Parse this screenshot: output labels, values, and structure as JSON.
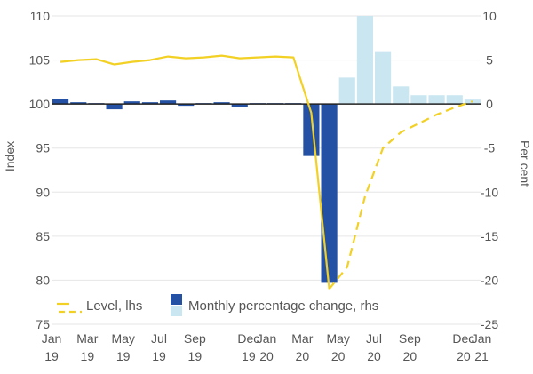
{
  "chart_data": {
    "type": "bar",
    "ylabel_left": "Index",
    "ylabel_right": "Per cent",
    "ylim_left": [
      75,
      110
    ],
    "ylim_right": [
      -25,
      10
    ],
    "left_ticks": [
      110,
      105,
      100,
      95,
      90,
      85,
      80,
      75
    ],
    "right_ticks": [
      10,
      5,
      0,
      -5,
      -10,
      -15,
      -20,
      -25
    ],
    "x_ticks": [
      {
        "month": "Jan",
        "year": "19"
      },
      {
        "month": "Mar",
        "year": "19"
      },
      {
        "month": "May",
        "year": "19"
      },
      {
        "month": "Jul",
        "year": "19"
      },
      {
        "month": "Sep",
        "year": "19"
      },
      {
        "month": "Dec",
        "year": "19"
      },
      {
        "month": "Jan",
        "year": "20"
      },
      {
        "month": "Mar",
        "year": "20"
      },
      {
        "month": "May",
        "year": "20"
      },
      {
        "month": "Jul",
        "year": "20"
      },
      {
        "month": "Sep",
        "year": "20"
      },
      {
        "month": "Dec",
        "year": "20"
      },
      {
        "month": "Jan",
        "year": "21"
      }
    ],
    "months": [
      "Jan 2019",
      "Feb 2019",
      "Mar 2019",
      "Apr 2019",
      "May 2019",
      "Jun 2019",
      "Jul 2019",
      "Aug 2019",
      "Sep 2019",
      "Oct 2019",
      "Nov 2019",
      "Dec 2019",
      "Jan 2020",
      "Feb 2020",
      "Mar 2020",
      "Apr 2020",
      "May 2020",
      "Jun 2020",
      "Jul 2020",
      "Aug 2020",
      "Sep 2020",
      "Oct 2020",
      "Nov 2020",
      "Dec 2020"
    ],
    "monthly_change": [
      0.6,
      0.2,
      0.1,
      -0.6,
      0.3,
      0.2,
      0.4,
      -0.2,
      0.1,
      0.2,
      -0.3,
      0.1,
      0.1,
      0.1,
      -5.9,
      -20.3,
      3.0,
      10.0,
      6.0,
      2.0,
      1.0,
      1.0,
      1.0,
      0.5
    ],
    "level_actual": [
      {
        "x": 0,
        "y": 104.8
      },
      {
        "x": 1,
        "y": 105.0
      },
      {
        "x": 2,
        "y": 105.1
      },
      {
        "x": 3,
        "y": 104.5
      },
      {
        "x": 4,
        "y": 104.8
      },
      {
        "x": 5,
        "y": 105.0
      },
      {
        "x": 6,
        "y": 105.4
      },
      {
        "x": 7,
        "y": 105.2
      },
      {
        "x": 8,
        "y": 105.3
      },
      {
        "x": 9,
        "y": 105.5
      },
      {
        "x": 10,
        "y": 105.2
      },
      {
        "x": 11,
        "y": 105.3
      },
      {
        "x": 12,
        "y": 105.4
      },
      {
        "x": 13,
        "y": 105.3
      },
      {
        "x": 14,
        "y": 99.0
      },
      {
        "x": 15,
        "y": 79.0
      }
    ],
    "level_projected": [
      {
        "x": 15,
        "y": 79.0
      },
      {
        "x": 16,
        "y": 81.5
      },
      {
        "x": 17,
        "y": 89.5
      },
      {
        "x": 18,
        "y": 95.0
      },
      {
        "x": 19,
        "y": 96.8
      },
      {
        "x": 20,
        "y": 97.8
      },
      {
        "x": 21,
        "y": 98.8
      },
      {
        "x": 22,
        "y": 99.6
      },
      {
        "x": 23,
        "y": 100.3
      }
    ],
    "legend": [
      {
        "label": "Level, lhs",
        "kind": "line"
      },
      {
        "label": "Monthly percentage change, rhs",
        "kind": "bar"
      }
    ],
    "colors": {
      "bar_actual": "#2451a4",
      "bar_projected": "#c9e6f1",
      "line": "#f2d024",
      "zero_line": "#222222",
      "grid": "#e6e6e6"
    }
  }
}
